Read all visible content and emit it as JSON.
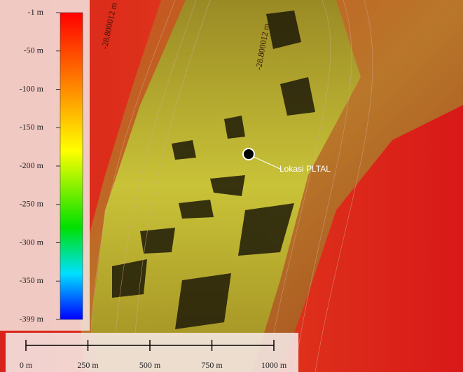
{
  "legend": {
    "labels": [
      "-1 m",
      "-50 m",
      "-100 m",
      "-150 m",
      "-200 m",
      "-250 m",
      "-300 m",
      "-350 m",
      "-399 m"
    ]
  },
  "scale_bar": {
    "labels": [
      "0 m",
      "250 m",
      "500 m",
      "750 m",
      "1000 m"
    ]
  },
  "annotation": {
    "label": "Lokasi PLTAL"
  },
  "contour_labels": [
    "-28.800012 m",
    "-28.800012 m"
  ]
}
